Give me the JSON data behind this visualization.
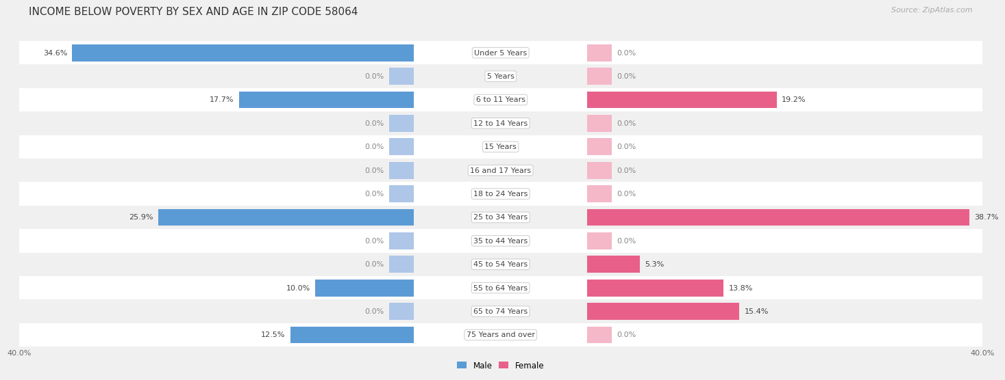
{
  "title": "INCOME BELOW POVERTY BY SEX AND AGE IN ZIP CODE 58064",
  "source": "Source: ZipAtlas.com",
  "categories": [
    "Under 5 Years",
    "5 Years",
    "6 to 11 Years",
    "12 to 14 Years",
    "15 Years",
    "16 and 17 Years",
    "18 to 24 Years",
    "25 to 34 Years",
    "35 to 44 Years",
    "45 to 54 Years",
    "55 to 64 Years",
    "65 to 74 Years",
    "75 Years and over"
  ],
  "male": [
    34.6,
    0.0,
    17.7,
    0.0,
    0.0,
    0.0,
    0.0,
    25.9,
    0.0,
    0.0,
    10.0,
    0.0,
    12.5
  ],
  "female": [
    0.0,
    0.0,
    19.2,
    0.0,
    0.0,
    0.0,
    0.0,
    38.7,
    0.0,
    5.3,
    13.8,
    15.4,
    0.0
  ],
  "male_color_dark": "#5B9BD5",
  "male_color_light": "#AEC6E8",
  "female_color_dark": "#E8608A",
  "female_color_light": "#F4B8C8",
  "axis_max": 40.0,
  "stub_val": 2.5,
  "bg_light": "#f0f0f0",
  "bg_white": "#ffffff",
  "row_separator": "#d0d0d0",
  "title_fontsize": 11,
  "source_fontsize": 8,
  "label_fontsize": 8,
  "category_fontsize": 8,
  "legend_fontsize": 8.5
}
